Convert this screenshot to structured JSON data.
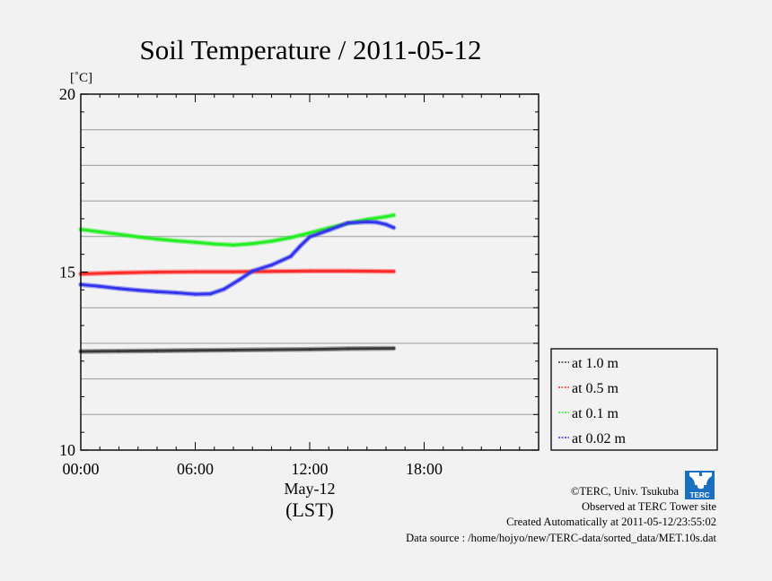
{
  "chart_data": {
    "type": "line",
    "title": "Soil Temperature / 2011-05-12",
    "ylabel": "[˚C]",
    "ylim": [
      10,
      20
    ],
    "yticks": [
      10,
      15,
      20
    ],
    "ygrid": [
      11,
      12,
      13,
      14,
      16,
      17,
      18,
      19
    ],
    "xlim": [
      0,
      24
    ],
    "xticks": [
      {
        "v": 0,
        "label": "00:00"
      },
      {
        "v": 6,
        "label": "06:00"
      },
      {
        "v": 12,
        "label": "12:00"
      },
      {
        "v": 18,
        "label": "18:00"
      }
    ],
    "xlabel_date": "May-12",
    "xlabel_unit": "(LST)",
    "series": [
      {
        "name": "at 1.0 m",
        "legend": "at 1.0 m",
        "color": "#3a3a3a",
        "x": [
          0,
          2,
          4,
          6,
          8,
          10,
          12,
          14,
          16.4
        ],
        "y": [
          12.77,
          12.78,
          12.79,
          12.8,
          12.81,
          12.82,
          12.83,
          12.85,
          12.86
        ]
      },
      {
        "name": "at 0.5 m",
        "legend": "at 0.5 m",
        "color": "#ff2a2a",
        "x": [
          0,
          2,
          4,
          6,
          8,
          10,
          12,
          14,
          16.4
        ],
        "y": [
          14.95,
          14.98,
          15.0,
          15.01,
          15.01,
          15.02,
          15.03,
          15.03,
          15.02
        ]
      },
      {
        "name": "at 0.1 m",
        "legend": "at 0.1 m",
        "color": "#22ee22",
        "x": [
          0,
          1,
          2,
          3,
          4,
          5,
          6,
          7,
          8,
          9,
          10,
          11,
          12,
          13,
          14,
          15,
          16,
          16.4
        ],
        "y": [
          16.2,
          16.13,
          16.06,
          15.99,
          15.93,
          15.88,
          15.84,
          15.79,
          15.76,
          15.8,
          15.87,
          15.97,
          16.1,
          16.24,
          16.37,
          16.48,
          16.56,
          16.6
        ]
      },
      {
        "name": "at 0.02 m",
        "legend": "at 0.02 m",
        "color": "#3333ee",
        "x": [
          0,
          1,
          2,
          3,
          4,
          5,
          6,
          6.8,
          7.5,
          8.3,
          9,
          10,
          11,
          11.5,
          12,
          13,
          14,
          15,
          15.5,
          16,
          16.4
        ],
        "y": [
          14.65,
          14.6,
          14.54,
          14.49,
          14.45,
          14.42,
          14.38,
          14.39,
          14.52,
          14.78,
          15.03,
          15.2,
          15.44,
          15.73,
          15.99,
          16.18,
          16.38,
          16.41,
          16.4,
          16.34,
          16.25
        ]
      }
    ]
  },
  "footer": {
    "copyright": "©TERC, Univ. Tsukuba",
    "observed": "Observed at TERC Tower site",
    "created": "Created Automatically at 2011-05-12/23:55:02",
    "source": "Data source : /home/hojyo/new/TERC-data/sorted_data/MET.10s.dat"
  },
  "logo": {
    "text": "TERC",
    "color": "#1a6fc0"
  }
}
